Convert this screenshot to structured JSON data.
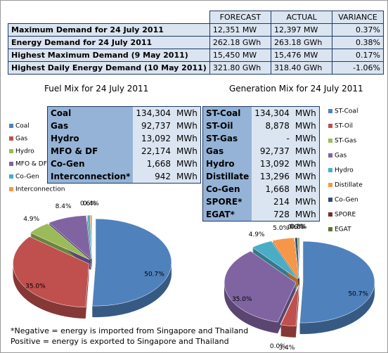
{
  "summary": {
    "header": [
      "FORECAST",
      "ACTUAL",
      "VARIANCE"
    ],
    "rows": [
      [
        "Maximum Demand for 24 July 2011",
        "12,351  MW",
        "12,397  MW",
        "0.37%"
      ],
      [
        "Energy Demand for 24 July 2011",
        "262.18  GWh",
        "263.18  GWh",
        "0.38%"
      ],
      [
        "Highest Maximum Demand (9 May 2011)",
        "15,450  MW",
        "15,476  MW",
        "0.17%"
      ],
      [
        "Highest Daily Energy Demand (10 May 2011)",
        "321.80  GWh",
        "318.40  GWh",
        "-1.06%"
      ]
    ]
  },
  "fuel_table": {
    "rows": [
      [
        "Coal",
        "134,304",
        "MWh"
      ],
      [
        "Gas",
        "92,737",
        "MWh"
      ],
      [
        "Hydro",
        "13,092",
        "MWh"
      ],
      [
        "MFO & DF",
        "22,174",
        "MWh"
      ],
      [
        "Co-Gen",
        "1,668",
        "MWh"
      ],
      [
        "Interconnection*",
        "942",
        "MWh"
      ]
    ]
  },
  "generation_table": {
    "rows": [
      [
        "ST-Coal",
        "134,304",
        "MWh"
      ],
      [
        "ST-Oil",
        "8,878",
        "MWh"
      ],
      [
        "ST-Gas",
        "-",
        "MWh"
      ],
      [
        "Gas",
        "92,737",
        "MWh"
      ],
      [
        "Hydro",
        "13,092",
        "MWh"
      ],
      [
        "Distillate",
        "13,296",
        "MWh"
      ],
      [
        "Co-Gen",
        "1,668",
        "MWh"
      ],
      [
        "SPORE*",
        "214",
        "MWh"
      ],
      [
        "EGAT*",
        "728",
        "MWh"
      ]
    ]
  },
  "chart_data": [
    {
      "type": "pie",
      "title": "Fuel Mix for 24 July 2011",
      "categories": [
        "Coal",
        "Gas",
        "Hydro",
        "MFO & DF",
        "Co-Gen",
        "Interconnection"
      ],
      "values": [
        50.7,
        35.0,
        4.9,
        8.4,
        0.6,
        0.4
      ],
      "value_labels": [
        "50.7%",
        "35.0%",
        "4.9%",
        "8.4%",
        "0.6%",
        "0.4%"
      ],
      "colors": [
        "#4f81bd",
        "#c0504d",
        "#9bbb59",
        "#8064a2",
        "#4bacc6",
        "#f79646"
      ]
    },
    {
      "type": "pie",
      "title": "Generation Mix for 24 July 2011",
      "categories": [
        "ST-Coal",
        "ST-Oil",
        "ST-Gas",
        "Gas",
        "Hydro",
        "Distillate",
        "Co-Gen",
        "SPORE",
        "EGAT"
      ],
      "values": [
        50.7,
        3.4,
        0.0,
        35.0,
        4.9,
        5.0,
        0.6,
        0.1,
        0.3
      ],
      "value_labels": [
        "50.7%",
        "3.4%",
        "0.0%",
        "35.0%",
        "4.9%",
        "5.0%",
        "0.6%",
        "0.1%",
        "0.3%"
      ],
      "colors": [
        "#4f81bd",
        "#c0504d",
        "#9bbb59",
        "#8064a2",
        "#4bacc6",
        "#f79646",
        "#2c4d75",
        "#772c2a",
        "#5f7530"
      ]
    }
  ],
  "footnote": [
    "*Negative = energy is imported from Singapore and Thailand",
    "Positive = energy is exported to Singapore and Thailand"
  ]
}
